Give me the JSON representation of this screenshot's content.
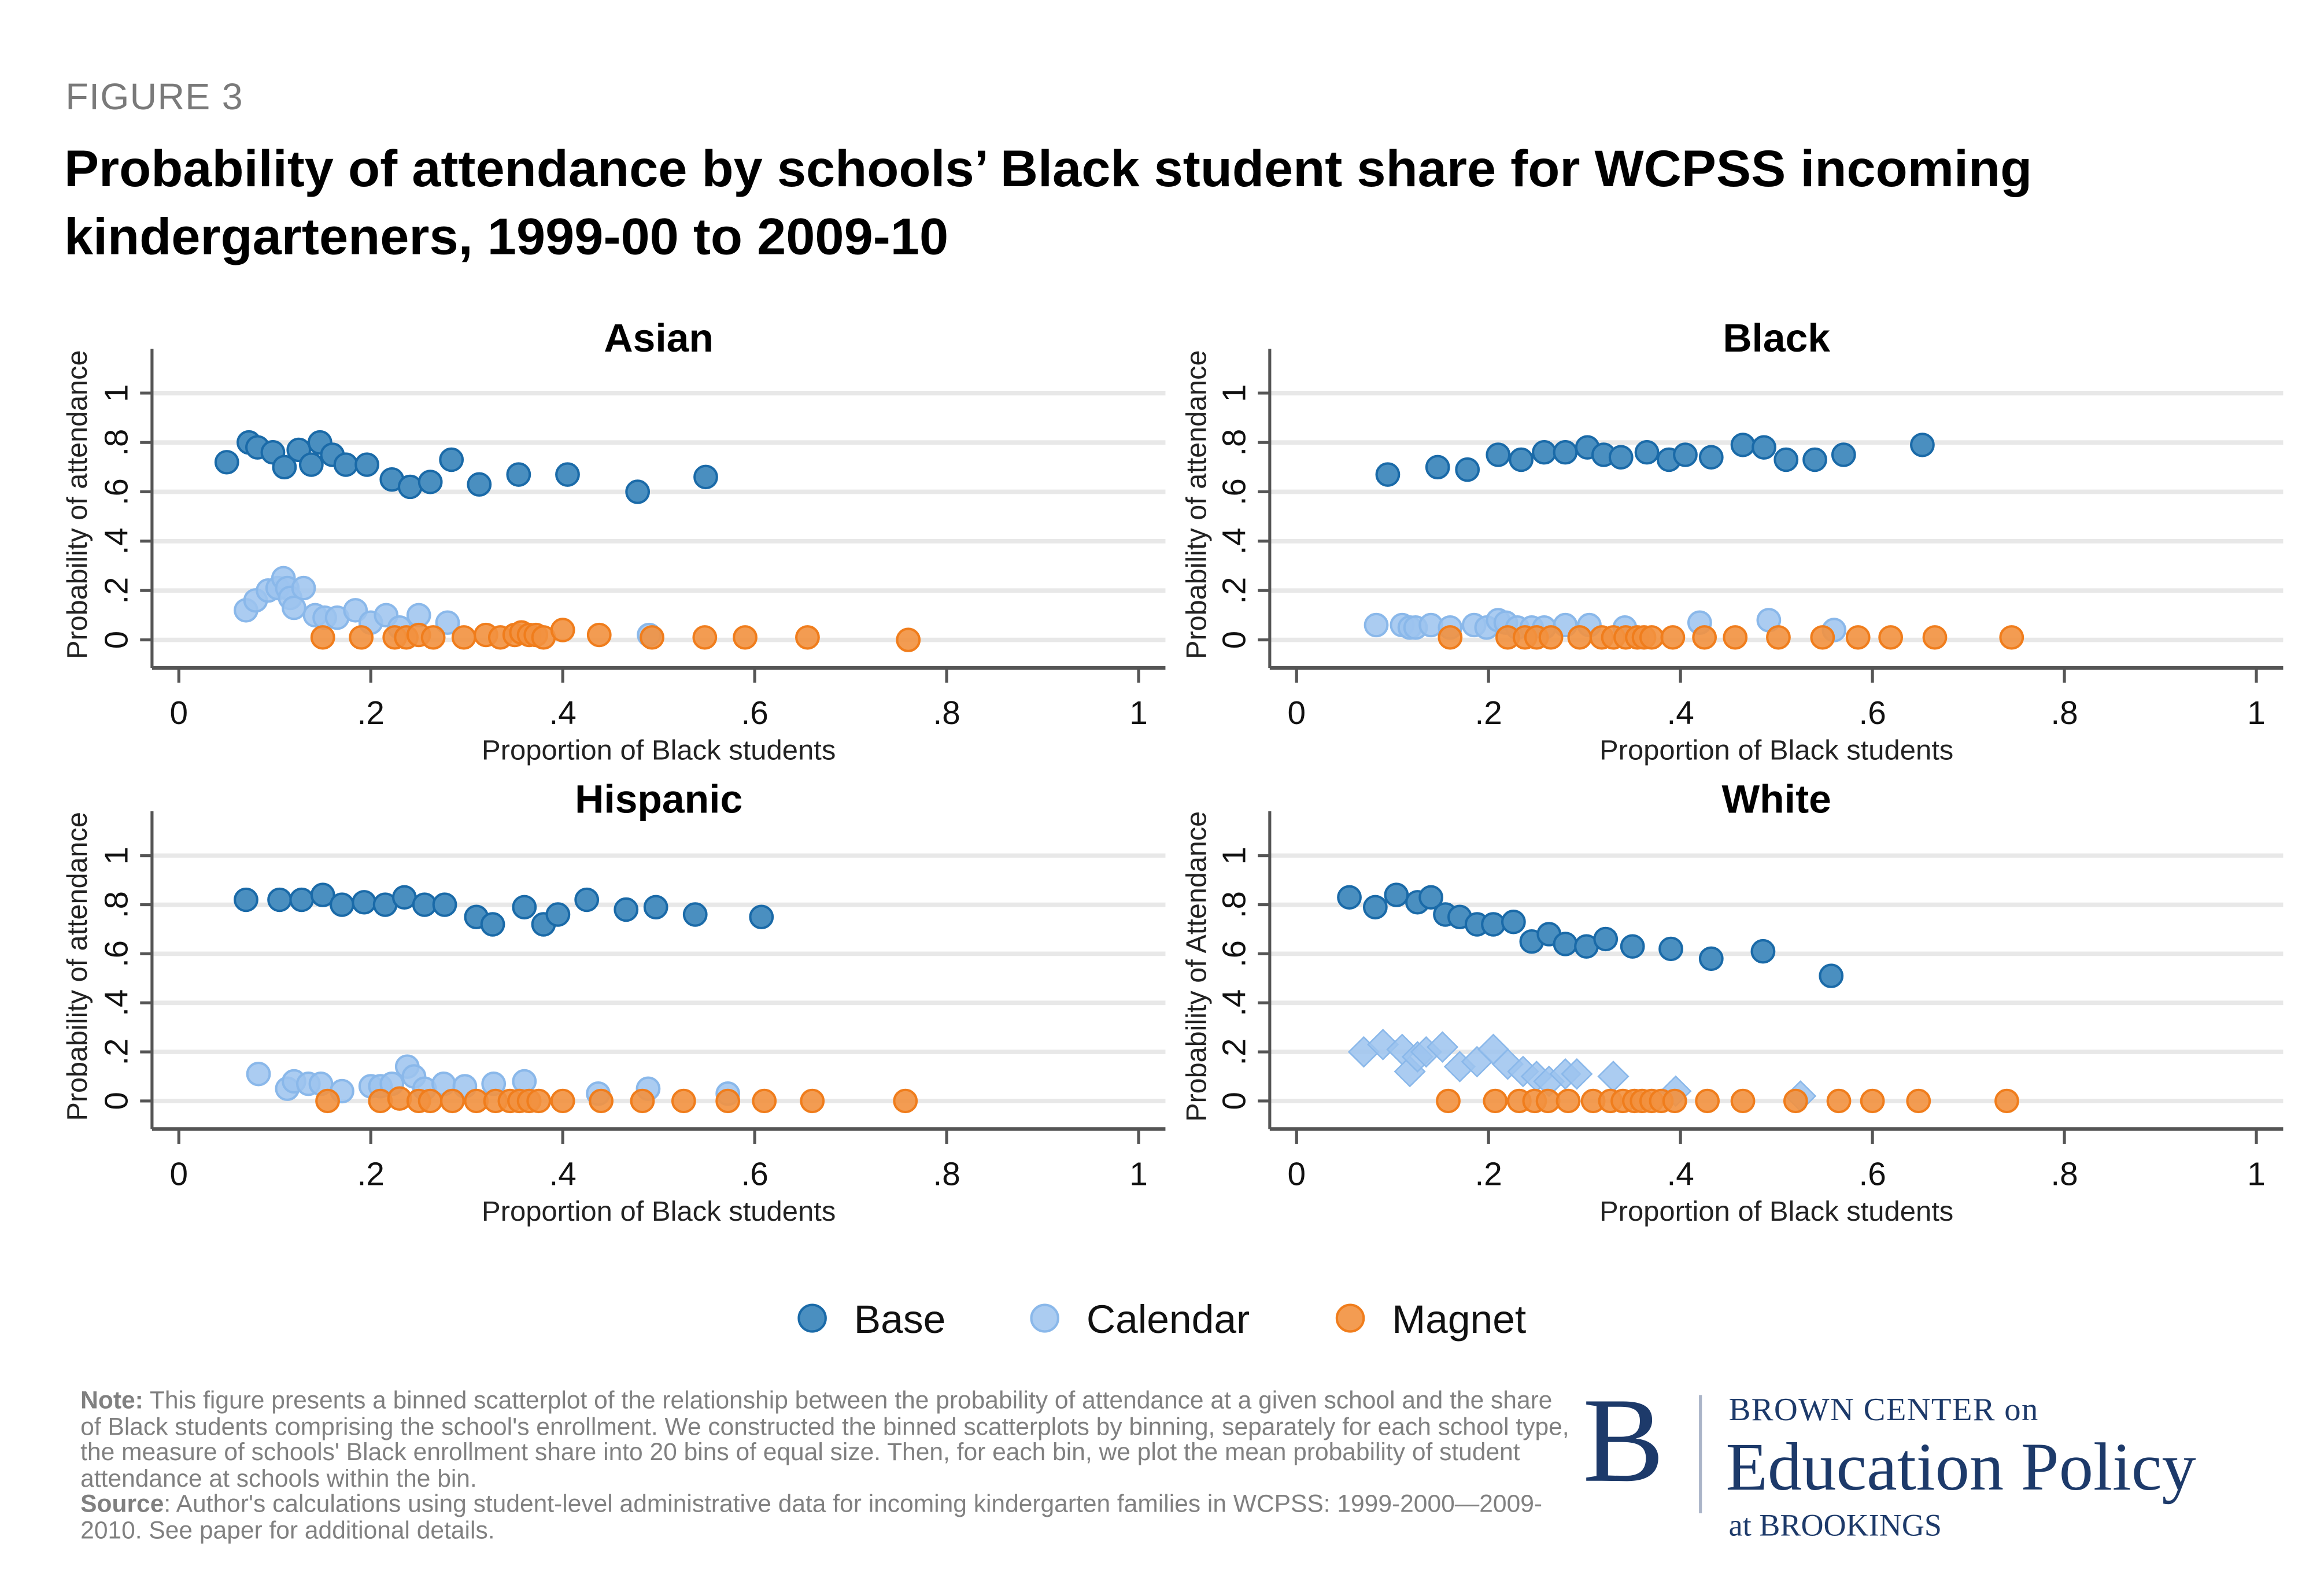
{
  "figure_label": "FIGURE 3",
  "title": "Probability of attendance by schools’ Black student share for WCPSS incoming kindergarteners, 1999-00 to 2009-10",
  "colors": {
    "base_fill": "#4a8fc0",
    "base_edge": "#1a6aa8",
    "calendar_fill": "#9cc3ee",
    "calendar_edge": "#8ab8ea",
    "magnet_fill": "#f2913f",
    "magnet_edge": "#f07d1c",
    "grid": "#e8e8e8",
    "axis": "#555555",
    "logo": "#1d3a6a"
  },
  "legend": {
    "placement": "bottom-center",
    "items": [
      {
        "key": "base",
        "label": "Base",
        "marker": "circle"
      },
      {
        "key": "calendar",
        "label": "Calendar",
        "marker": "circle"
      },
      {
        "key": "magnet",
        "label": "Magnet",
        "marker": "circle"
      }
    ]
  },
  "note": {
    "note_label": "Note:",
    "note_text": " This figure presents a binned scatterplot of the relationship between the probability of attendance at a given school and the share of Black students comprising the school's enrollment. We constructed the binned scatterplots by binning, separately for each school type, the measure of schools' Black enrollment share into 20 bins of equal size. Then, for each bin, we plot the mean probability of student attendance at schools within the bin.",
    "source_label": "Source",
    "source_text": ": Author's calculations using student-level administrative data for incoming kindergarten families in WCPSS: 1999-2000—2009-2010. See paper for additional details."
  },
  "logo": {
    "mark": "B",
    "line1": "BROWN CENTER on",
    "line2": "Education Policy",
    "line3": "at BROOKINGS"
  },
  "chart_data": [
    {
      "type": "scatter",
      "title": "Asian",
      "xlabel": "Proportion of Black students",
      "ylabel": "Probability of attendance",
      "xlim": [
        0,
        1
      ],
      "ylim": [
        0,
        1
      ],
      "xticks": [
        0,
        0.2,
        0.4,
        0.6,
        0.8,
        1
      ],
      "xtick_labels": [
        "0",
        ".2",
        ".4",
        ".6",
        ".8",
        "1"
      ],
      "yticks": [
        0,
        0.2,
        0.4,
        0.6,
        0.8,
        1
      ],
      "ytick_labels": [
        "0",
        ".2",
        ".4",
        ".6",
        ".8",
        "1"
      ],
      "grid": true,
      "series": [
        {
          "name": "Base",
          "key": "base",
          "marker": "circle",
          "x": [
            0.05,
            0.073,
            0.082,
            0.098,
            0.11,
            0.125,
            0.138,
            0.147,
            0.16,
            0.174,
            0.196,
            0.222,
            0.241,
            0.262,
            0.284,
            0.313,
            0.354,
            0.405,
            0.478,
            0.549
          ],
          "y": [
            0.72,
            0.8,
            0.78,
            0.76,
            0.7,
            0.77,
            0.71,
            0.8,
            0.75,
            0.71,
            0.71,
            0.65,
            0.62,
            0.64,
            0.73,
            0.63,
            0.67,
            0.67,
            0.6,
            0.66
          ]
        },
        {
          "name": "Calendar",
          "key": "calendar",
          "marker": "circle",
          "x": [
            0.07,
            0.08,
            0.093,
            0.103,
            0.109,
            0.113,
            0.116,
            0.12,
            0.13,
            0.142,
            0.152,
            0.165,
            0.184,
            0.2,
            0.216,
            0.23,
            0.25,
            0.28,
            0.49
          ],
          "y": [
            0.12,
            0.16,
            0.2,
            0.21,
            0.25,
            0.21,
            0.17,
            0.13,
            0.21,
            0.1,
            0.09,
            0.09,
            0.12,
            0.07,
            0.1,
            0.05,
            0.1,
            0.07,
            0.02
          ]
        },
        {
          "name": "Magnet",
          "key": "magnet",
          "marker": "circle",
          "x": [
            0.15,
            0.19,
            0.225,
            0.237,
            0.25,
            0.265,
            0.297,
            0.32,
            0.335,
            0.35,
            0.357,
            0.365,
            0.372,
            0.38,
            0.4,
            0.438,
            0.493,
            0.548,
            0.59,
            0.655,
            0.76
          ],
          "y": [
            0.01,
            0.01,
            0.01,
            0.01,
            0.02,
            0.01,
            0.01,
            0.02,
            0.01,
            0.02,
            0.03,
            0.02,
            0.02,
            0.01,
            0.04,
            0.02,
            0.01,
            0.01,
            0.01,
            0.01,
            0.0
          ]
        }
      ]
    },
    {
      "type": "scatter",
      "title": "Black",
      "xlabel": "Proportion of Black students",
      "ylabel": "Probability of attendance",
      "xlim": [
        0,
        1
      ],
      "ylim": [
        0,
        1
      ],
      "xticks": [
        0,
        0.2,
        0.4,
        0.6,
        0.8,
        1
      ],
      "xtick_labels": [
        "0",
        ".2",
        ".4",
        ".6",
        ".8",
        "1"
      ],
      "yticks": [
        0,
        0.2,
        0.4,
        0.6,
        0.8,
        1
      ],
      "ytick_labels": [
        "0",
        ".2",
        ".4",
        ".6",
        ".8",
        "1"
      ],
      "grid": true,
      "series": [
        {
          "name": "Base",
          "key": "base",
          "marker": "circle",
          "x": [
            0.095,
            0.147,
            0.178,
            0.21,
            0.234,
            0.258,
            0.28,
            0.303,
            0.32,
            0.338,
            0.365,
            0.388,
            0.405,
            0.432,
            0.465,
            0.487,
            0.51,
            0.54,
            0.57,
            0.652
          ],
          "y": [
            0.67,
            0.7,
            0.69,
            0.75,
            0.73,
            0.76,
            0.76,
            0.78,
            0.75,
            0.74,
            0.76,
            0.73,
            0.75,
            0.74,
            0.79,
            0.78,
            0.73,
            0.73,
            0.75,
            0.79
          ]
        },
        {
          "name": "Calendar",
          "key": "calendar",
          "marker": "circle",
          "x": [
            0.083,
            0.11,
            0.118,
            0.124,
            0.14,
            0.16,
            0.185,
            0.198,
            0.21,
            0.218,
            0.23,
            0.245,
            0.258,
            0.28,
            0.305,
            0.342,
            0.42,
            0.492,
            0.56
          ],
          "y": [
            0.06,
            0.06,
            0.05,
            0.05,
            0.06,
            0.05,
            0.06,
            0.05,
            0.08,
            0.07,
            0.05,
            0.05,
            0.05,
            0.06,
            0.06,
            0.05,
            0.07,
            0.08,
            0.04
          ]
        },
        {
          "name": "Magnet",
          "key": "magnet",
          "marker": "circle",
          "x": [
            0.16,
            0.22,
            0.238,
            0.25,
            0.265,
            0.295,
            0.318,
            0.33,
            0.343,
            0.355,
            0.362,
            0.37,
            0.392,
            0.425,
            0.457,
            0.502,
            0.548,
            0.585,
            0.619,
            0.665,
            0.745
          ],
          "y": [
            0.01,
            0.01,
            0.01,
            0.01,
            0.01,
            0.01,
            0.01,
            0.01,
            0.01,
            0.01,
            0.01,
            0.01,
            0.01,
            0.01,
            0.01,
            0.01,
            0.01,
            0.01,
            0.01,
            0.01,
            0.01
          ]
        }
      ]
    },
    {
      "type": "scatter",
      "title": "Hispanic",
      "xlabel": "Proportion of Black students",
      "ylabel": "Probability of attendance",
      "xlim": [
        0,
        1
      ],
      "ylim": [
        0,
        1
      ],
      "xticks": [
        0,
        0.2,
        0.4,
        0.6,
        0.8,
        1
      ],
      "xtick_labels": [
        "0",
        ".2",
        ".4",
        ".6",
        ".8",
        "1"
      ],
      "yticks": [
        0,
        0.2,
        0.4,
        0.6,
        0.8,
        1
      ],
      "ytick_labels": [
        "0",
        ".2",
        ".4",
        ".6",
        ".8",
        "1"
      ],
      "grid": true,
      "series": [
        {
          "name": "Base",
          "key": "base",
          "marker": "circle",
          "x": [
            0.07,
            0.105,
            0.128,
            0.15,
            0.17,
            0.193,
            0.215,
            0.235,
            0.256,
            0.277,
            0.31,
            0.327,
            0.36,
            0.38,
            0.395,
            0.425,
            0.466,
            0.497,
            0.538,
            0.607
          ],
          "y": [
            0.82,
            0.82,
            0.82,
            0.84,
            0.8,
            0.81,
            0.8,
            0.83,
            0.8,
            0.8,
            0.75,
            0.72,
            0.79,
            0.72,
            0.76,
            0.82,
            0.78,
            0.79,
            0.76,
            0.75
          ]
        },
        {
          "name": "Calendar",
          "key": "calendar",
          "marker": "circle",
          "x": [
            0.083,
            0.113,
            0.12,
            0.135,
            0.148,
            0.17,
            0.2,
            0.21,
            0.222,
            0.238,
            0.245,
            0.256,
            0.276,
            0.298,
            0.328,
            0.36,
            0.437,
            0.489,
            0.572
          ],
          "y": [
            0.11,
            0.05,
            0.08,
            0.07,
            0.07,
            0.04,
            0.06,
            0.06,
            0.07,
            0.14,
            0.1,
            0.05,
            0.07,
            0.06,
            0.07,
            0.08,
            0.03,
            0.05,
            0.03
          ]
        },
        {
          "name": "Magnet",
          "key": "magnet",
          "marker": "circle",
          "x": [
            0.155,
            0.21,
            0.23,
            0.25,
            0.262,
            0.285,
            0.31,
            0.33,
            0.345,
            0.355,
            0.365,
            0.375,
            0.4,
            0.44,
            0.483,
            0.526,
            0.572,
            0.61,
            0.66,
            0.757
          ],
          "y": [
            0.0,
            0.0,
            0.01,
            0.0,
            0.0,
            0.0,
            0.0,
            0.0,
            0.0,
            0.0,
            0.0,
            0.0,
            0.0,
            0.0,
            0.0,
            0.0,
            0.0,
            0.0,
            0.0,
            0.0
          ]
        }
      ]
    },
    {
      "type": "scatter",
      "title": "White",
      "xlabel": "Proportion of Black students",
      "ylabel": "Probability of Attendance",
      "xlim": [
        0,
        1
      ],
      "ylim": [
        0,
        1
      ],
      "xticks": [
        0,
        0.2,
        0.4,
        0.6,
        0.8,
        1
      ],
      "xtick_labels": [
        "0",
        ".2",
        ".4",
        ".6",
        ".8",
        "1"
      ],
      "yticks": [
        0,
        0.2,
        0.4,
        0.6,
        0.8,
        1
      ],
      "ytick_labels": [
        "0",
        ".2",
        ".4",
        ".6",
        ".8",
        "1"
      ],
      "grid": true,
      "series": [
        {
          "name": "Base",
          "key": "base",
          "marker": "circle",
          "x": [
            0.055,
            0.082,
            0.104,
            0.126,
            0.14,
            0.155,
            0.17,
            0.188,
            0.205,
            0.226,
            0.245,
            0.263,
            0.28,
            0.302,
            0.322,
            0.35,
            0.39,
            0.432,
            0.486,
            0.557
          ],
          "y": [
            0.83,
            0.79,
            0.84,
            0.81,
            0.83,
            0.76,
            0.75,
            0.72,
            0.72,
            0.73,
            0.65,
            0.68,
            0.64,
            0.63,
            0.66,
            0.63,
            0.62,
            0.58,
            0.61,
            0.51
          ]
        },
        {
          "name": "Calendar",
          "key": "calendar",
          "marker": "diamond",
          "x": [
            0.07,
            0.09,
            0.11,
            0.118,
            0.126,
            0.135,
            0.152,
            0.17,
            0.188,
            0.205,
            0.22,
            0.236,
            0.25,
            0.263,
            0.28,
            0.292,
            0.33,
            0.395,
            0.525
          ],
          "y": [
            0.2,
            0.23,
            0.21,
            0.12,
            0.18,
            0.2,
            0.22,
            0.14,
            0.16,
            0.21,
            0.15,
            0.12,
            0.1,
            0.08,
            0.11,
            0.11,
            0.1,
            0.04,
            0.02
          ]
        },
        {
          "name": "Magnet",
          "key": "magnet",
          "marker": "circle",
          "x": [
            0.158,
            0.207,
            0.232,
            0.248,
            0.262,
            0.283,
            0.309,
            0.327,
            0.34,
            0.352,
            0.36,
            0.37,
            0.38,
            0.394,
            0.428,
            0.465,
            0.52,
            0.565,
            0.6,
            0.648,
            0.74
          ],
          "y": [
            0.0,
            0.0,
            0.0,
            0.0,
            0.0,
            0.0,
            0.0,
            0.0,
            0.0,
            0.0,
            0.0,
            0.0,
            0.0,
            0.0,
            0.0,
            0.0,
            0.0,
            0.0,
            0.0,
            0.0,
            0.0
          ]
        }
      ]
    }
  ]
}
